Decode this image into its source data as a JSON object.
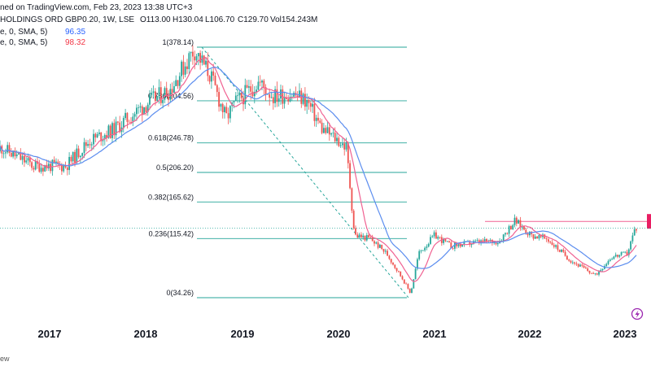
{
  "header": {
    "line1_prefix": "ned on TradingView.com, Feb 23, 2023 13:38 UTC+3",
    "line2_symbol": "HOLDINGS ORD GBP0.20, 1W, LSE",
    "line2_o": "O113.00",
    "line2_h": "H130.04",
    "line2_l": "L106.70",
    "line2_c": "C129.70",
    "line2_v": "Vol154.243M",
    "ma1_label": "e, 0, SMA, 5)",
    "ma1_value": "96.35",
    "ma2_label": "e, 0, SMA, 5)",
    "ma2_value": "98.32"
  },
  "colors": {
    "up": "#26a69a",
    "down": "#ef5350",
    "ma_blue": "#5b8def",
    "ma_red": "#f06292",
    "fib": "#26a69a",
    "resistance": "#f06292",
    "badge": "#e91e63",
    "lightning": "#9c27b0"
  },
  "footer_text": "ew",
  "chart_data": {
    "type": "candlestick",
    "x_axis_labels": [
      "2017",
      "2018",
      "2019",
      "2020",
      "2021",
      "2022",
      "2023"
    ],
    "fib_levels": [
      {
        "ratio": 1,
        "price": 378.14,
        "label": "1(378.14)"
      },
      {
        "ratio": 0.786,
        "price": 304.56,
        "label": "0.786(304.56)"
      },
      {
        "ratio": 0.618,
        "price": 246.78,
        "label": "0.618(246.78)"
      },
      {
        "ratio": 0.5,
        "price": 206.2,
        "label": "0.5(206.20)"
      },
      {
        "ratio": 0.382,
        "price": 165.62,
        "label": "0.382(165.62)"
      },
      {
        "ratio": 0.236,
        "price": 115.42,
        "label": "0.236(115.42)"
      },
      {
        "ratio": 0,
        "price": 34.26,
        "label": "0(34.26)"
      }
    ],
    "resistance_level": 139,
    "current_price": 129.7,
    "ma_blue_last": 96.35,
    "ma_red_last": 98.32,
    "waypoints": [
      [
        "2016-04",
        235
      ],
      [
        "2016-07",
        240
      ],
      [
        "2016-11",
        215
      ],
      [
        "2017-03",
        215
      ],
      [
        "2017-06",
        250
      ],
      [
        "2017-09",
        265
      ],
      [
        "2018-01",
        300
      ],
      [
        "2018-04",
        320
      ],
      [
        "2018-07",
        375
      ],
      [
        "2018-09",
        340
      ],
      [
        "2018-11",
        280
      ],
      [
        "2018-12",
        300
      ],
      [
        "2019-03",
        330
      ],
      [
        "2019-05",
        310
      ],
      [
        "2019-07",
        315
      ],
      [
        "2019-09",
        305
      ],
      [
        "2019-11",
        265
      ],
      [
        "2020-01",
        250
      ],
      [
        "2020-02",
        240
      ],
      [
        "2020-03",
        120
      ],
      [
        "2020-05",
        115
      ],
      [
        "2020-07",
        95
      ],
      [
        "2020-09",
        60
      ],
      [
        "2020-10",
        40
      ],
      [
        "2020-11",
        95
      ],
      [
        "2021-01",
        120
      ],
      [
        "2021-03",
        105
      ],
      [
        "2021-06",
        110
      ],
      [
        "2021-09",
        112
      ],
      [
        "2021-11",
        140
      ],
      [
        "2022-01",
        120
      ],
      [
        "2022-03",
        115
      ],
      [
        "2022-06",
        85
      ],
      [
        "2022-09",
        65
      ],
      [
        "2022-11",
        90
      ],
      [
        "2023-01",
        95
      ],
      [
        "2023-02",
        130
      ]
    ]
  }
}
